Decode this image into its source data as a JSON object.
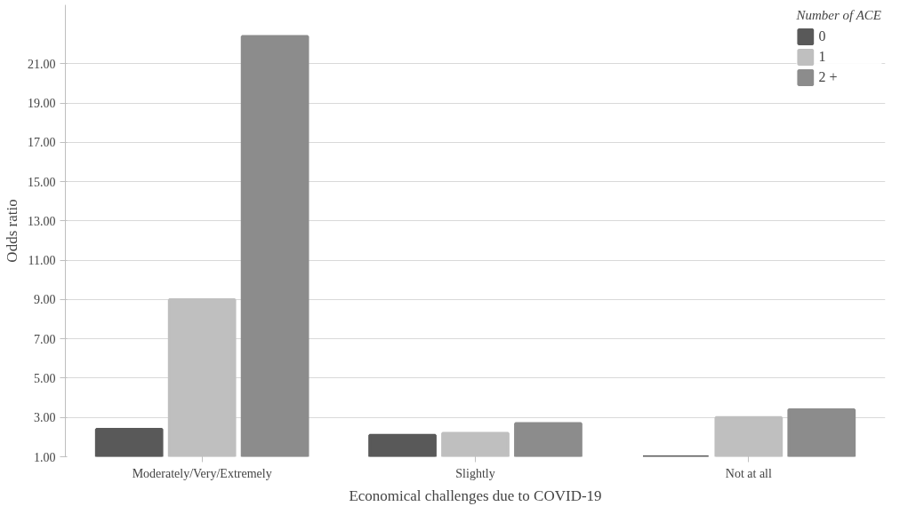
{
  "chart_data": {
    "type": "bar",
    "xlabel": "Economical challenges due to COVID-19",
    "ylabel": "Odds ratio",
    "legend_title": "Number of ACE",
    "categories": [
      "Moderately/Very/Extremely",
      "Slightly",
      "Not at all"
    ],
    "series": [
      {
        "name": "0",
        "color": "#595959",
        "values": [
          2.4,
          2.1,
          1.0
        ]
      },
      {
        "name": "1",
        "color": "#bfbfbf",
        "values": [
          9.0,
          2.2,
          3.0
        ]
      },
      {
        "name": "2 +",
        "color": "#8c8c8c",
        "values": [
          22.4,
          2.7,
          3.4
        ]
      }
    ],
    "ylim": [
      1,
      24
    ],
    "yticks": [
      {
        "value": 1,
        "label": "1.00"
      },
      {
        "value": 3,
        "label": "3.00"
      },
      {
        "value": 5,
        "label": "5.00"
      },
      {
        "value": 7,
        "label": "7.00"
      },
      {
        "value": 9,
        "label": "9.00"
      },
      {
        "value": 11,
        "label": "11.00"
      },
      {
        "value": 13,
        "label": "13.00"
      },
      {
        "value": 15,
        "label": "15.00"
      },
      {
        "value": 17,
        "label": "17.00"
      },
      {
        "value": 19,
        "label": "19.00"
      },
      {
        "value": 21,
        "label": "21.00"
      }
    ],
    "grid": "y",
    "legend": "top right"
  }
}
